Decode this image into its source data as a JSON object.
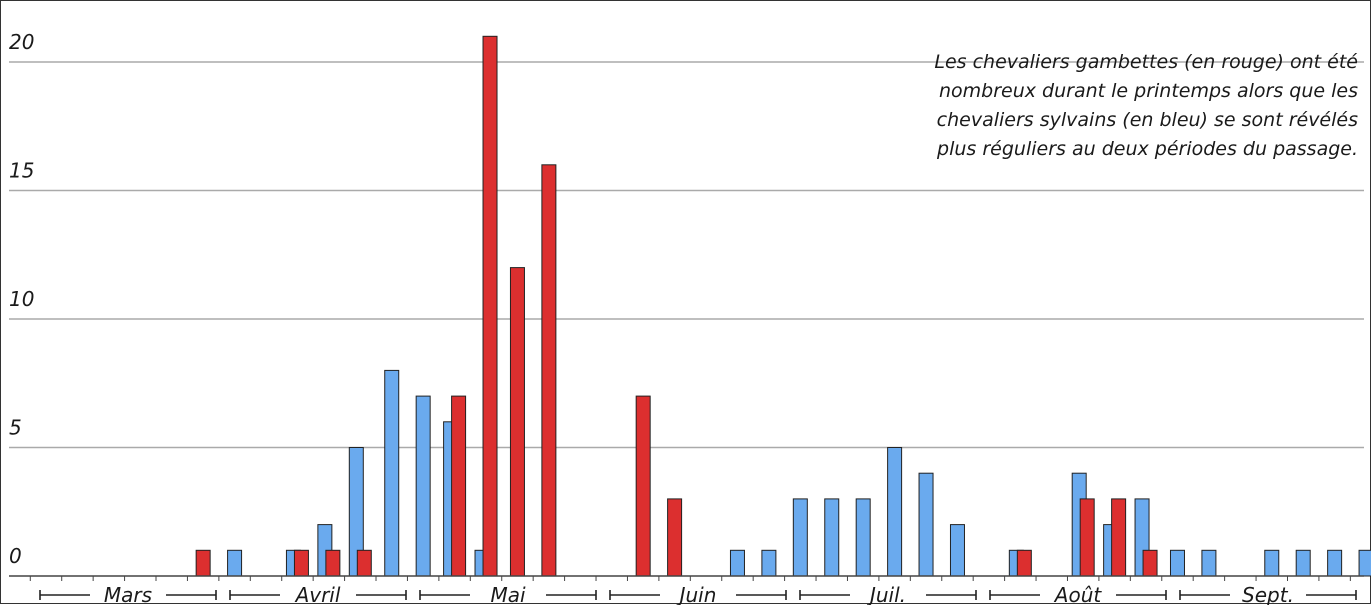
{
  "chart_data": {
    "type": "bar",
    "ylim": [
      0,
      21
    ],
    "yticks": [
      "0",
      "5",
      "10",
      "15",
      "20"
    ],
    "grid": true,
    "months": [
      "Mars",
      "Avril",
      "Mai",
      "Juin",
      "Juil.",
      "Août",
      "Sept."
    ],
    "annotation": [
      "Les chevaliers gambettes (en rouge) ont été",
      "nombreux durant le printemps alors que les",
      "chevaliers sylvains (en bleu) se sont révélés",
      "plus réguliers au deux périodes du passage."
    ],
    "colors": {
      "red": "#dc2f2f",
      "blue": "#6aaaee",
      "grid": "#aaaaaa",
      "axis": "#444444"
    },
    "series": [
      {
        "color": "red",
        "values": [
          0,
          0,
          0,
          0,
          0,
          1,
          0,
          0,
          1,
          1,
          1,
          0,
          0,
          7,
          21,
          12,
          16,
          0,
          0,
          7,
          3,
          0,
          0,
          0,
          0,
          0,
          0,
          0,
          0,
          0,
          0,
          1,
          0,
          3,
          3,
          1,
          0,
          0,
          0,
          0,
          0,
          0,
          0,
          0
        ]
      },
      {
        "color": "blue",
        "values": [
          0,
          0,
          0,
          0,
          0,
          0,
          1,
          0,
          1,
          2,
          5,
          8,
          7,
          6,
          1,
          0,
          0,
          0,
          0,
          0,
          0,
          0,
          1,
          1,
          3,
          3,
          3,
          5,
          4,
          2,
          0,
          1,
          0,
          4,
          2,
          3,
          1,
          1,
          0,
          1,
          1,
          1,
          1,
          1
        ]
      }
    ]
  }
}
